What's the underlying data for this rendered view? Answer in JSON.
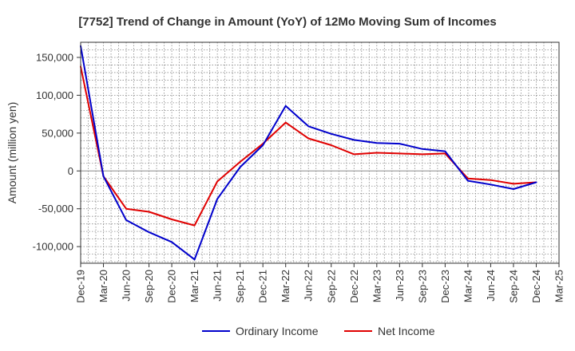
{
  "chart_data": {
    "type": "line",
    "title": "[7752]  Trend of Change in Amount (YoY) of 12Mo Moving Sum of Incomes",
    "xlabel": "",
    "ylabel": "Amount (million yen)",
    "ylim": [
      -122000,
      170000
    ],
    "yticks": [
      150000,
      100000,
      50000,
      0,
      -50000,
      -100000
    ],
    "ytick_labels": [
      "150,000",
      "100,000",
      "50,000",
      "0",
      "-50,000",
      "-100,000"
    ],
    "categories": [
      "Dec-19",
      "Mar-20",
      "Jun-20",
      "Sep-20",
      "Dec-20",
      "Mar-21",
      "Jun-21",
      "Sep-21",
      "Dec-21",
      "Mar-22",
      "Jun-22",
      "Sep-22",
      "Dec-22",
      "Mar-23",
      "Jun-23",
      "Sep-23",
      "Dec-23",
      "Mar-24",
      "Jun-24",
      "Sep-24",
      "Dec-24",
      "Mar-25"
    ],
    "grid": true,
    "legend_position": "bottom",
    "series": [
      {
        "name": "Ordinary Income",
        "color": "#0000cc",
        "values": [
          165000,
          -7000,
          -65000,
          -81000,
          -94000,
          -117000,
          -37000,
          5000,
          34000,
          86000,
          59000,
          49000,
          41000,
          37000,
          36000,
          29000,
          26000,
          -13000,
          -18000,
          -24000,
          -15000,
          null
        ]
      },
      {
        "name": "Net Income",
        "color": "#e00000",
        "values": [
          138000,
          -7000,
          -50000,
          -54000,
          -64000,
          -72000,
          -14000,
          12000,
          36000,
          64000,
          43000,
          34000,
          22000,
          24000,
          23000,
          22000,
          23000,
          -10000,
          -12000,
          -17000,
          -15000,
          null
        ]
      }
    ]
  }
}
